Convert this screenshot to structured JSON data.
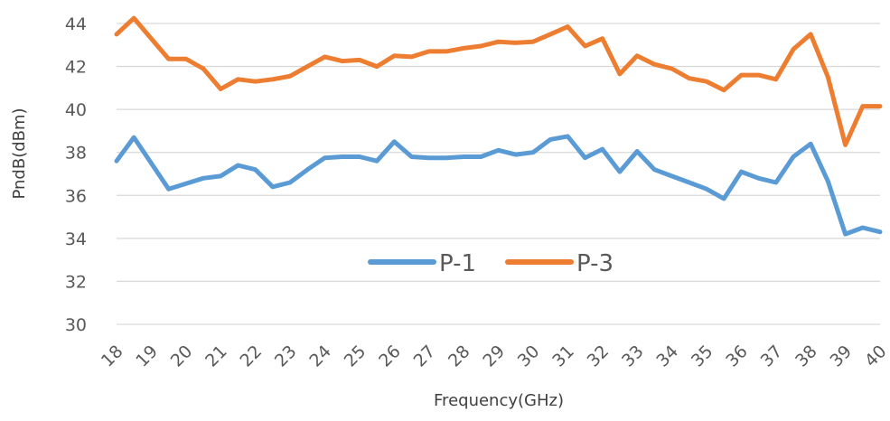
{
  "chart_data": {
    "type": "line",
    "title": "",
    "xlabel": "Frequency(GHz)",
    "ylabel": "PndB(dBm)",
    "ylim": [
      30,
      44
    ],
    "yticks": [
      "30",
      "32",
      "34",
      "36",
      "38",
      "40",
      "42",
      "44"
    ],
    "xlim": [
      18,
      40
    ],
    "xticks": [
      "18",
      "19",
      "20",
      "21",
      "22",
      "23",
      "24",
      "25",
      "26",
      "27",
      "28",
      "29",
      "30",
      "31",
      "32",
      "33",
      "34",
      "35",
      "36",
      "37",
      "38",
      "39",
      "40"
    ],
    "grid": "horizontal",
    "legend_position": "inside-bottom-center",
    "x": [
      18,
      18.5,
      19,
      19.5,
      20,
      20.5,
      21,
      21.5,
      22,
      22.5,
      23,
      23.5,
      24,
      24.5,
      25,
      25.5,
      26,
      26.5,
      27,
      27.5,
      28,
      28.5,
      29,
      29.5,
      30,
      30.5,
      31,
      31.5,
      32,
      32.5,
      33,
      33.5,
      34,
      34.5,
      35,
      35.5,
      36,
      36.5,
      37,
      37.5,
      38,
      38.5,
      39,
      39.5,
      40
    ],
    "series": [
      {
        "name": "P-1",
        "color": "#5b9bd5",
        "values": [
          37.6,
          38.7,
          37.5,
          36.3,
          36.55,
          36.8,
          36.9,
          37.4,
          37.2,
          36.4,
          36.6,
          37.2,
          37.75,
          37.8,
          37.8,
          37.6,
          38.5,
          37.8,
          37.75,
          37.75,
          37.8,
          37.8,
          38.1,
          37.9,
          38.0,
          38.6,
          38.75,
          37.75,
          38.15,
          37.1,
          38.05,
          37.2,
          36.9,
          36.6,
          36.3,
          35.85,
          37.1,
          36.8,
          36.6,
          37.8,
          38.4,
          36.65,
          34.2,
          34.5,
          34.3
        ]
      },
      {
        "name": "P-3",
        "color": "#ed7d31",
        "values": [
          43.5,
          44.25,
          43.3,
          42.35,
          42.35,
          41.9,
          40.95,
          41.4,
          41.3,
          41.4,
          41.55,
          42.0,
          42.45,
          42.25,
          42.3,
          42.0,
          42.5,
          42.45,
          42.7,
          42.7,
          42.85,
          42.95,
          43.15,
          43.1,
          43.15,
          43.5,
          43.85,
          42.95,
          43.3,
          41.65,
          42.5,
          42.1,
          41.9,
          41.45,
          41.3,
          40.9,
          41.6,
          41.6,
          41.4,
          42.8,
          43.5,
          41.5,
          38.35,
          40.15,
          40.15
        ]
      }
    ]
  }
}
